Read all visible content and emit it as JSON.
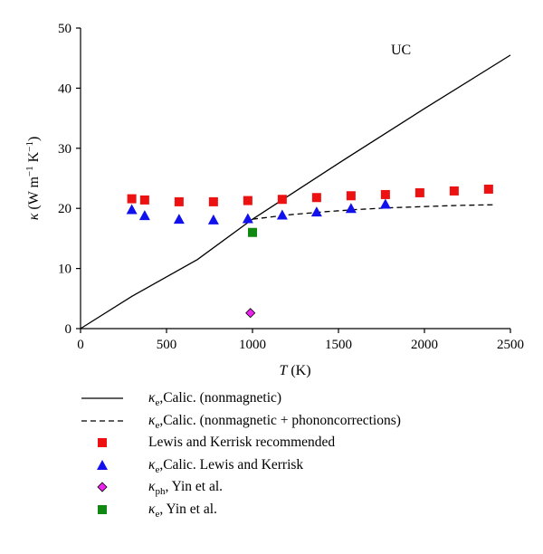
{
  "chart_data": {
    "type": "scatter",
    "xlabel": "T (K)",
    "ylabel": "κ (W m⁻¹ K⁻¹)",
    "xlim": [
      0,
      2500
    ],
    "ylim": [
      0,
      50
    ],
    "xticks": [
      0,
      500,
      1000,
      1500,
      2000,
      2500
    ],
    "yticks": [
      0,
      10,
      20,
      30,
      40,
      50
    ],
    "grid": false,
    "legend_position": "below",
    "annotation": "UC",
    "series": [
      {
        "name": "κe,Calic. (nonmagnetic)",
        "kind": "line",
        "style": "solid",
        "color": "#000000",
        "x": [
          0,
          300,
          680,
          1000,
          1500,
          2000,
          2500
        ],
        "y": [
          0,
          5.4,
          11.5,
          18.2,
          27.5,
          36.6,
          45.5
        ]
      },
      {
        "name": "κe,Calic. (nonmagnetic + phononcorrections)",
        "kind": "line",
        "style": "dashed",
        "color": "#000000",
        "x": [
          1000,
          1200,
          1400,
          1600,
          1800,
          2000,
          2200,
          2400
        ],
        "y": [
          18.2,
          18.9,
          19.4,
          19.8,
          20.1,
          20.3,
          20.5,
          20.6
        ]
      },
      {
        "name": "Lewis and Kerrisk recommended",
        "kind": "marker",
        "marker": "square",
        "color": "#ee1111",
        "x": [
          298,
          373,
          573,
          773,
          973,
          1173,
          1373,
          1573,
          1773,
          1973,
          2173,
          2373
        ],
        "y": [
          21.6,
          21.4,
          21.1,
          21.1,
          21.3,
          21.5,
          21.8,
          22.1,
          22.3,
          22.6,
          22.9,
          23.2
        ]
      },
      {
        "name": "κe,Calic. Lewis and Kerrisk",
        "kind": "marker",
        "marker": "triangle",
        "color": "#1111ee",
        "x": [
          298,
          373,
          573,
          773,
          973,
          1173,
          1373,
          1573,
          1773
        ],
        "y": [
          19.8,
          18.8,
          18.2,
          18.1,
          18.3,
          18.9,
          19.4,
          20.0,
          20.7
        ]
      },
      {
        "name": "κph, Yin et al.",
        "kind": "marker",
        "marker": "diamond",
        "color": "#ee22ee",
        "x": [
          988
        ],
        "y": [
          2.6
        ]
      },
      {
        "name": "κe, Yin et al.",
        "kind": "marker",
        "marker": "square",
        "color": "#118811",
        "x": [
          1000
        ],
        "y": [
          16.0
        ]
      }
    ]
  },
  "axis_title": {
    "y_symbol": "κ",
    "y_open": " (W m",
    "y_exp1": "−1",
    "y_mid": " K",
    "y_exp2": "−1",
    "y_close": ")",
    "x_symbol": "T",
    "x_rest": " (K)"
  },
  "legend": [
    {
      "sym": "κ",
      "sub": "e",
      "text": ",Calic. (nonmagnetic)"
    },
    {
      "sym": "κ",
      "sub": "e",
      "text": ",Calic. (nonmagnetic + phononcorrections)"
    },
    {
      "sym": "",
      "sub": "",
      "text": "Lewis and Kerrisk recommended"
    },
    {
      "sym": "κ",
      "sub": "e",
      "text": ",Calic. Lewis and Kerrisk"
    },
    {
      "sym": "κ",
      "sub": "ph",
      "text": ", Yin et al."
    },
    {
      "sym": "κ",
      "sub": "e",
      "text": ", Yin et al."
    }
  ]
}
